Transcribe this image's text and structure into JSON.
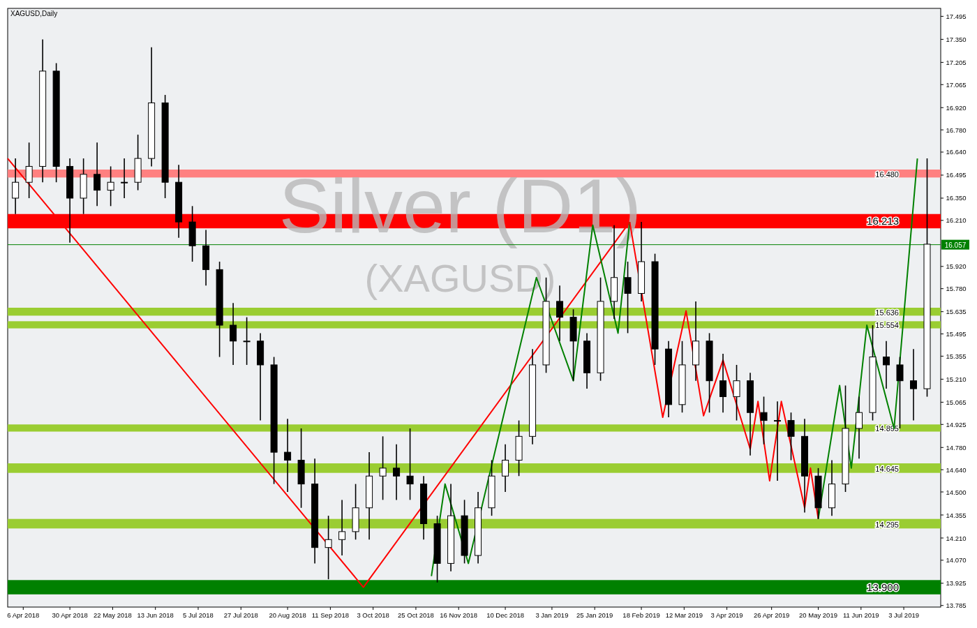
{
  "chart_data": {
    "type": "candlestick",
    "title": "XAGUSD,Daily",
    "annotations": [
      "Silver (D1)",
      "(XAGUSD)"
    ],
    "x": [
      "2018-04-02",
      "2018-04-09",
      "2018-04-16",
      "2018-04-23",
      "2018-04-30",
      "2018-05-07",
      "2018-05-14",
      "2018-05-21",
      "2018-05-28",
      "2018-06-04",
      "2018-06-11",
      "2018-06-18",
      "2018-06-25",
      "2018-07-02",
      "2018-07-09",
      "2018-07-16",
      "2018-07-23",
      "2018-07-30",
      "2018-08-06",
      "2018-08-13",
      "2018-08-20",
      "2018-08-27",
      "2018-09-03",
      "2018-09-10",
      "2018-09-17",
      "2018-09-24",
      "2018-10-01",
      "2018-10-08",
      "2018-10-15",
      "2018-10-22",
      "2018-10-29",
      "2018-11-05",
      "2018-11-12",
      "2018-11-19",
      "2018-11-26",
      "2018-12-03",
      "2018-12-10",
      "2018-12-17",
      "2018-12-24",
      "2018-12-31",
      "2019-01-07",
      "2019-01-14",
      "2019-01-21",
      "2019-01-28",
      "2019-02-04",
      "2019-02-11",
      "2019-02-18",
      "2019-02-25",
      "2019-03-04",
      "2019-03-11",
      "2019-03-18",
      "2019-03-25",
      "2019-04-01",
      "2019-04-08",
      "2019-04-15",
      "2019-04-22",
      "2019-04-29",
      "2019-05-06",
      "2019-05-13",
      "2019-05-20",
      "2019-05-27",
      "2019-06-03",
      "2019-06-10",
      "2019-06-17",
      "2019-06-24",
      "2019-07-01",
      "2019-07-08",
      "2019-07-15"
    ],
    "ohlc": [
      [
        16.35,
        16.6,
        16.25,
        16.45
      ],
      [
        16.45,
        16.7,
        16.35,
        16.55
      ],
      [
        16.55,
        17.35,
        16.45,
        17.15
      ],
      [
        17.15,
        17.2,
        16.45,
        16.55
      ],
      [
        16.55,
        16.6,
        16.07,
        16.35
      ],
      [
        16.35,
        16.6,
        16.25,
        16.5
      ],
      [
        16.5,
        16.7,
        16.3,
        16.4
      ],
      [
        16.4,
        16.55,
        16.3,
        16.45
      ],
      [
        16.45,
        16.6,
        16.35,
        16.45
      ],
      [
        16.45,
        16.75,
        16.4,
        16.6
      ],
      [
        16.6,
        17.3,
        16.55,
        16.95
      ],
      [
        16.95,
        17.0,
        16.35,
        16.45
      ],
      [
        16.45,
        16.56,
        16.1,
        16.2
      ],
      [
        16.2,
        16.3,
        15.95,
        16.05
      ],
      [
        16.05,
        16.15,
        15.8,
        15.9
      ],
      [
        15.9,
        15.95,
        15.35,
        15.55
      ],
      [
        15.55,
        15.69,
        15.3,
        15.45
      ],
      [
        15.45,
        15.6,
        15.3,
        15.45
      ],
      [
        15.45,
        15.5,
        14.95,
        15.3
      ],
      [
        15.3,
        15.35,
        14.55,
        14.75
      ],
      [
        14.75,
        14.96,
        14.5,
        14.7
      ],
      [
        14.7,
        14.9,
        14.4,
        14.55
      ],
      [
        14.55,
        14.71,
        14.05,
        14.15
      ],
      [
        14.15,
        14.35,
        13.95,
        14.2
      ],
      [
        14.2,
        14.45,
        14.1,
        14.25
      ],
      [
        14.25,
        14.55,
        14.2,
        14.4
      ],
      [
        14.4,
        14.75,
        14.2,
        14.6
      ],
      [
        14.6,
        14.85,
        14.45,
        14.65
      ],
      [
        14.65,
        14.8,
        14.45,
        14.6
      ],
      [
        14.6,
        14.9,
        14.45,
        14.55
      ],
      [
        14.55,
        14.6,
        14.2,
        14.3
      ],
      [
        14.3,
        14.35,
        13.93,
        14.05
      ],
      [
        14.05,
        14.55,
        14.0,
        14.35
      ],
      [
        14.35,
        14.45,
        14.05,
        14.1
      ],
      [
        14.1,
        14.5,
        14.05,
        14.4
      ],
      [
        14.4,
        14.7,
        14.35,
        14.6
      ],
      [
        14.6,
        14.8,
        14.5,
        14.7
      ],
      [
        14.7,
        14.95,
        14.6,
        14.85
      ],
      [
        14.85,
        15.4,
        14.8,
        15.3
      ],
      [
        15.3,
        15.85,
        15.25,
        15.7
      ],
      [
        15.7,
        15.8,
        15.45,
        15.6
      ],
      [
        15.6,
        15.65,
        15.2,
        15.45
      ],
      [
        15.45,
        15.5,
        15.15,
        15.25
      ],
      [
        15.25,
        15.85,
        15.2,
        15.7
      ],
      [
        15.7,
        16.18,
        15.59,
        15.85
      ],
      [
        15.85,
        15.95,
        15.5,
        15.75
      ],
      [
        15.75,
        16.2,
        15.7,
        15.95
      ],
      [
        15.95,
        16.0,
        15.3,
        15.4
      ],
      [
        15.4,
        15.45,
        14.97,
        15.05
      ],
      [
        15.05,
        15.45,
        15.0,
        15.3
      ],
      [
        15.3,
        15.7,
        15.2,
        15.45
      ],
      [
        15.45,
        15.5,
        15.0,
        15.2
      ],
      [
        15.2,
        15.37,
        15.0,
        15.1
      ],
      [
        15.1,
        15.3,
        14.95,
        15.2
      ],
      [
        15.2,
        15.25,
        14.73,
        15.0
      ],
      [
        15.0,
        15.1,
        14.8,
        14.95
      ],
      [
        14.95,
        15.07,
        14.57,
        14.95
      ],
      [
        14.95,
        15.0,
        14.7,
        14.85
      ],
      [
        14.85,
        14.96,
        14.37,
        14.6
      ],
      [
        14.6,
        14.65,
        14.33,
        14.4
      ],
      [
        14.4,
        14.7,
        14.35,
        14.55
      ],
      [
        14.55,
        15.17,
        14.5,
        14.9
      ],
      [
        14.9,
        15.1,
        14.71,
        15.0
      ],
      [
        15.0,
        15.55,
        14.95,
        15.35
      ],
      [
        15.35,
        15.45,
        15.15,
        15.3
      ],
      [
        15.3,
        15.35,
        14.9,
        15.2
      ],
      [
        15.2,
        15.4,
        14.95,
        15.15
      ],
      [
        15.15,
        16.6,
        15.1,
        16.06
      ]
    ],
    "series": [
      {
        "type": "line",
        "color": "#ff0000",
        "x": [
          "2018-03-29",
          "2018-09-28",
          "2019-02-12"
        ],
        "values": [
          16.6,
          13.9,
          16.2
        ]
      },
      {
        "type": "line",
        "color": "#008000",
        "x": [
          "2018-11-02",
          "2018-11-09",
          "2018-11-21",
          "2018-12-26",
          "2019-01-14",
          "2019-01-24",
          "2019-02-06",
          "2019-02-12"
        ],
        "values": [
          13.97,
          14.55,
          14.05,
          15.85,
          15.2,
          16.18,
          15.5,
          16.2
        ]
      },
      {
        "type": "line",
        "color": "#ff0000",
        "x": [
          "2019-02-12",
          "2019-03-01",
          "2019-03-13",
          "2019-03-22",
          "2019-04-01",
          "2019-04-15",
          "2019-04-19",
          "2019-04-25",
          "2019-05-01",
          "2019-05-13",
          "2019-05-16",
          "2019-05-20"
        ],
        "values": [
          16.2,
          14.97,
          15.64,
          14.98,
          15.33,
          14.77,
          15.07,
          14.57,
          15.07,
          14.4,
          14.65,
          14.33
        ]
      },
      {
        "type": "line",
        "color": "#008000",
        "x": [
          "2019-05-20",
          "2019-05-31",
          "2019-06-06",
          "2019-06-14",
          "2019-06-28",
          "2019-07-10"
        ],
        "values": [
          14.33,
          15.17,
          14.65,
          15.55,
          14.9,
          16.6
        ]
      }
    ],
    "bands": [
      {
        "axis": "y",
        "from": 16.48,
        "to": 16.53,
        "label": "16.480",
        "color": "#ff8080"
      },
      {
        "axis": "y",
        "from": 16.16,
        "to": 16.25,
        "label": "16.213",
        "color": "#ff0000"
      },
      {
        "axis": "y",
        "from": 15.61,
        "to": 15.66,
        "label": "15.636",
        "color": "#9acd32"
      },
      {
        "axis": "y",
        "from": 15.53,
        "to": 15.575,
        "label": "15.554",
        "color": "#9acd32"
      },
      {
        "axis": "y",
        "from": 14.88,
        "to": 14.925,
        "label": "14.895",
        "color": "#9acd32"
      },
      {
        "axis": "y",
        "from": 14.62,
        "to": 14.68,
        "label": "14.645",
        "color": "#9acd32"
      },
      {
        "axis": "y",
        "from": 14.27,
        "to": 14.33,
        "label": "14.295",
        "color": "#9acd32"
      },
      {
        "axis": "y",
        "from": 13.855,
        "to": 13.945,
        "label": "13.900",
        "color": "#008000"
      }
    ],
    "ref_lines": [
      {
        "axis": "y",
        "value": 16.057,
        "label": "16.057",
        "color": "#008000"
      }
    ],
    "xlim": [
      "2018-03-29",
      "2019-07-22"
    ],
    "xticks": [
      {
        "value": "2018-04-06",
        "label": "6 Apr 2018"
      },
      {
        "value": "2018-04-30",
        "label": "30 Apr 2018"
      },
      {
        "value": "2018-05-22",
        "label": "22 May 2018"
      },
      {
        "value": "2018-06-13",
        "label": "13 Jun 2018"
      },
      {
        "value": "2018-07-05",
        "label": "5 Jul 2018"
      },
      {
        "value": "2018-07-27",
        "label": "27 Jul 2018"
      },
      {
        "value": "2018-08-20",
        "label": "20 Aug 2018"
      },
      {
        "value": "2018-09-11",
        "label": "11 Sep 2018"
      },
      {
        "value": "2018-10-03",
        "label": "3 Oct 2018"
      },
      {
        "value": "2018-10-25",
        "label": "25 Oct 2018"
      },
      {
        "value": "2018-11-16",
        "label": "16 Nov 2018"
      },
      {
        "value": "2018-12-10",
        "label": "10 Dec 2018"
      },
      {
        "value": "2019-01-03",
        "label": "3 Jan 2019"
      },
      {
        "value": "2019-01-25",
        "label": "25 Jan 2019"
      },
      {
        "value": "2019-02-18",
        "label": "18 Feb 2019"
      },
      {
        "value": "2019-03-12",
        "label": "12 Mar 2019"
      },
      {
        "value": "2019-04-03",
        "label": "3 Apr 2019"
      },
      {
        "value": "2019-04-26",
        "label": "26 Apr 2019"
      },
      {
        "value": "2019-05-20",
        "label": "20 May 2019"
      },
      {
        "value": "2019-06-11",
        "label": "11 Jun 2019"
      },
      {
        "value": "2019-07-03",
        "label": "3 Jul 2019"
      }
    ],
    "ylim": [
      13.775,
      17.545
    ],
    "yticks": [
      {
        "value": 13.785,
        "label": "13.785"
      },
      {
        "value": 13.925,
        "label": "13.925"
      },
      {
        "value": 14.07,
        "label": "14.070"
      },
      {
        "value": 14.21,
        "label": "14.210"
      },
      {
        "value": 14.355,
        "label": "14.355"
      },
      {
        "value": 14.5,
        "label": "14.500"
      },
      {
        "value": 14.64,
        "label": "14.640"
      },
      {
        "value": 14.78,
        "label": "14.780"
      },
      {
        "value": 14.925,
        "label": "14.925"
      },
      {
        "value": 15.065,
        "label": "15.065"
      },
      {
        "value": 15.21,
        "label": "15.210"
      },
      {
        "value": 15.355,
        "label": "15.355"
      },
      {
        "value": 15.495,
        "label": "15.495"
      },
      {
        "value": 15.635,
        "label": "15.635"
      },
      {
        "value": 15.78,
        "label": "15.780"
      },
      {
        "value": 15.92,
        "label": "15.920"
      },
      {
        "value": 16.21,
        "label": "16.210"
      },
      {
        "value": 16.35,
        "label": "16.350"
      },
      {
        "value": 16.495,
        "label": "16.495"
      },
      {
        "value": 16.64,
        "label": "16.640"
      },
      {
        "value": 16.78,
        "label": "16.780"
      },
      {
        "value": 16.92,
        "label": "16.920"
      },
      {
        "value": 17.065,
        "label": "17.065"
      },
      {
        "value": 17.205,
        "label": "17.205"
      },
      {
        "value": 17.35,
        "label": "17.350"
      },
      {
        "value": 17.495,
        "label": "17.495"
      }
    ],
    "grid": false
  }
}
